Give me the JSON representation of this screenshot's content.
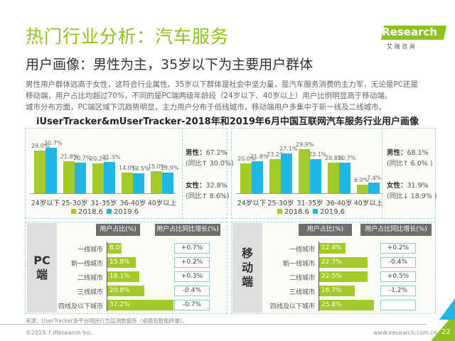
{
  "header": {
    "title": "热门行业分析：汽车服务",
    "subtitle": "用户画像：男性为主，35岁以下为主要用户群体",
    "logo": {
      "brand": "iResearch",
      "cn": "艾 瑞 咨 询"
    }
  },
  "body": [
    "男性用户群体远高于女性，这符合行业属性。35岁以下群体是社会中坚力量，是汽车服务消费的主力军，无论是PC还是",
    "移动端，用户占比均超过70%，不同的是PC端两级年龄段（24岁以下、40岁以上）用户比例明显高于移动端。",
    "城市分布方面，PC端区域下沉趋势明显，主力用户分布于低线城市，移动端用户多集中于新一线及二线城市。"
  ],
  "chart_title": "iUserTracker&mUserTracker-2018年和2019年6月中国互联网汽车服务行业用户画像",
  "colors": {
    "accent": "#8dc21f",
    "s2018": "#a3c92b",
    "s2019": "#1fb6e5"
  },
  "chart_data": [
    {
      "type": "bar",
      "platform": "PC",
      "categories": [
        "24岁以下",
        "25-30岁",
        "31-35岁",
        "36-40岁",
        "40岁以上"
      ],
      "series": [
        {
          "name": "2018.6",
          "values": [
            29.0,
            21.8,
            20.2,
            14.0,
            15.0
          ],
          "labels": [
            "29.0%",
            "21.8%",
            "20.2%",
            "14.0%",
            "15.0%"
          ]
        },
        {
          "name": "2019.6",
          "values": [
            30.7,
            20.7,
            21.3,
            13.5,
            13.9
          ],
          "labels": [
            "30.7%",
            "20.7%",
            "21.3%",
            "13.5%",
            "13.9%"
          ]
        }
      ],
      "gender": {
        "male": "男性：",
        "male_val": "67.2%",
        "male_yoy": "(同比↑ 30.0%)",
        "female": "女性：",
        "female_val": "32.8%",
        "female_yoy": "(同比↑ 8.6%)"
      }
    },
    {
      "type": "bar",
      "platform": "Mobile",
      "categories": [
        "24岁以下",
        "25-30岁",
        "31-35岁",
        "36-40岁",
        "40岁以上"
      ],
      "series": [
        {
          "name": "2018.6",
          "values": [
            20.0,
            23.2,
            29.9,
            20.8,
            6.0
          ],
          "labels": [
            "20.0%",
            "23.2%",
            "29.9%",
            "20.8%",
            "6.0%"
          ]
        },
        {
          "name": "2019.6",
          "values": [
            21.8,
            27.1,
            23.1,
            20.7,
            7.4
          ],
          "labels": [
            "21.8%",
            "27.1%",
            "23.1%",
            "20.7%",
            "7.4%"
          ]
        }
      ],
      "gender": {
        "male": "男性：",
        "male_val": "68.1%",
        "male_yoy": "(同比↑ 6.0% )",
        "female": "女性：",
        "female_val": "31.9%",
        "female_yoy": "(同比↓ 18.9% )"
      }
    },
    {
      "type": "bar",
      "platform": "PC端",
      "header_share": "用户占比(%)",
      "header_growth": "用户占比同比增长(%)",
      "categories": [
        "一线城市",
        "新一线城市",
        "二线城市",
        "三线城市",
        "四线及以下城市"
      ],
      "values": [
        8.0,
        15.8,
        18.1,
        20.8,
        37.2
      ],
      "labels": [
        "8.0%",
        "15.8%",
        "18.1%",
        "20.8%",
        "37.2%"
      ],
      "growth": [
        "+0.7%",
        "+0.2%",
        "+0.3%",
        "-0.4%",
        "-0.7%"
      ]
    },
    {
      "type": "bar",
      "platform": "移动端",
      "header_share": "用户占比(%)",
      "header_growth": "用户占比同比增长(%)",
      "categories": [
        "一线城市",
        "新一线城市",
        "二线城市",
        "三线城市",
        "四线及以下城市"
      ],
      "values": [
        12.4,
        22.7,
        22.5,
        16.7,
        25.8
      ],
      "labels": [
        "12.4%",
        "22.7%",
        "22.5%",
        "16.7%",
        "25.8%"
      ],
      "growth": [
        "+0.2%",
        "-0.4%",
        "+0.5%",
        "-1.2%",
        ""
      ]
    }
  ],
  "source": "来源：UserTracker多平台网民行为监测数据库（桌面及智能终端）。",
  "footer": {
    "copyright": "©2019.7 iResearch Inc.",
    "url": "www.iresearch.com.cn",
    "page": "22"
  }
}
